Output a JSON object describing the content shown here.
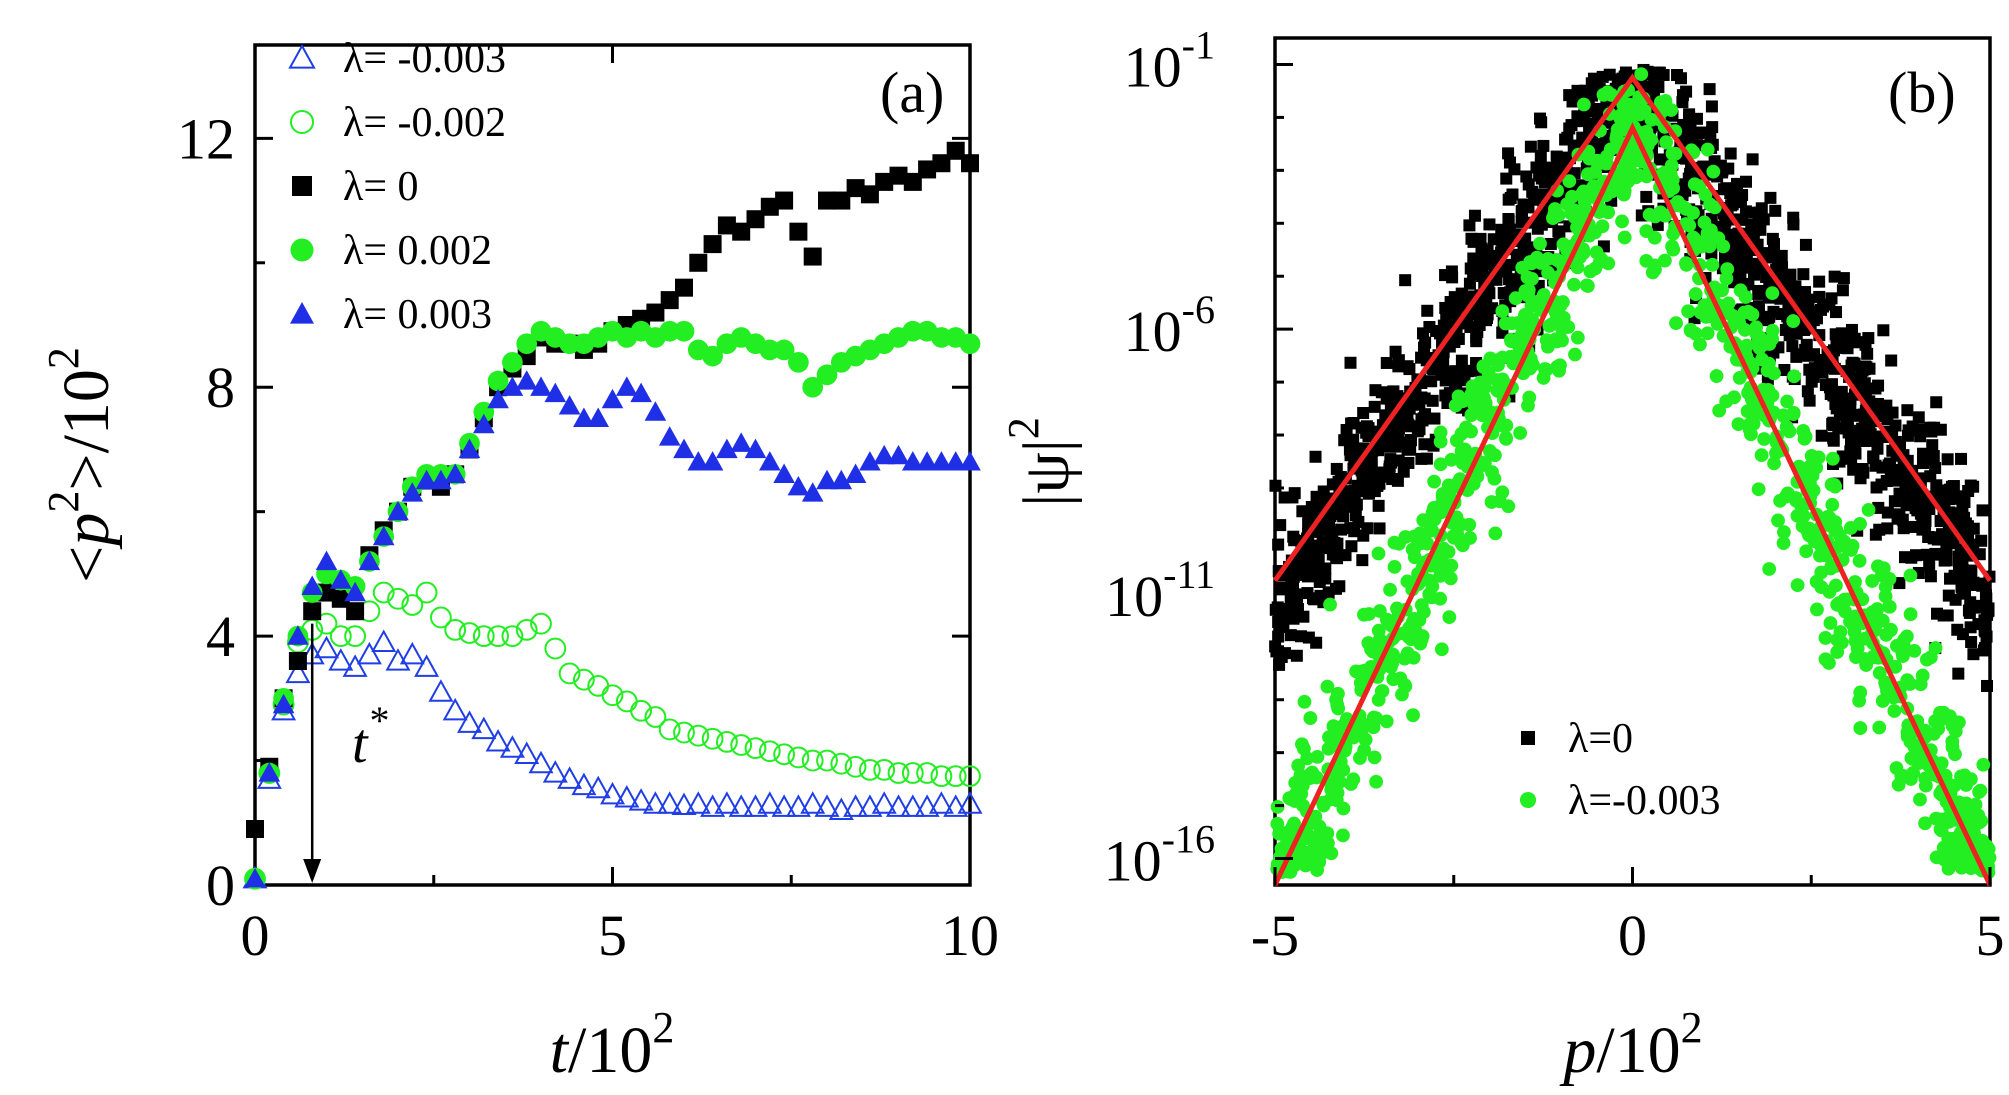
{
  "chart_data": [
    {
      "panel": "(a)",
      "type": "scatter",
      "xlabel": "t/10^2",
      "ylabel": "<p^2>/10^2",
      "xlim": [
        0,
        10
      ],
      "ylim": [
        0,
        13.5
      ],
      "x_ticks": [
        0,
        5,
        10
      ],
      "y_ticks": [
        0,
        4,
        8,
        12
      ],
      "x_tick_labels": [
        "0",
        "5",
        "10"
      ],
      "y_tick_labels": [
        "0",
        "4",
        "8",
        "12"
      ],
      "legend_position": "top-left",
      "annotation": {
        "text": "t",
        "superscript": "*",
        "arrow_x": 0.8,
        "arrow_from_y": 4.2,
        "arrow_to_y": 0
      },
      "series": [
        {
          "name": "λ= -0.003",
          "marker": "triangle-open",
          "color": "#1f3ee6",
          "x": [
            0.0,
            0.2,
            0.4,
            0.6,
            0.8,
            1.0,
            1.2,
            1.4,
            1.6,
            1.8,
            2.0,
            2.2,
            2.4,
            2.6,
            2.8,
            3.0,
            3.2,
            3.4,
            3.6,
            3.8,
            4.0,
            4.2,
            4.4,
            4.6,
            4.8,
            5.0,
            5.2,
            5.4,
            5.6,
            5.8,
            6.0,
            6.2,
            6.4,
            6.6,
            6.8,
            7.0,
            7.2,
            7.4,
            7.6,
            7.8,
            8.0,
            8.2,
            8.4,
            8.6,
            8.8,
            9.0,
            9.2,
            9.4,
            9.6,
            9.8,
            10.0
          ],
          "y": [
            0.1,
            1.7,
            2.8,
            3.4,
            3.7,
            3.8,
            3.6,
            3.5,
            3.7,
            3.9,
            3.6,
            3.7,
            3.5,
            3.1,
            2.8,
            2.6,
            2.5,
            2.3,
            2.2,
            2.1,
            1.95,
            1.8,
            1.7,
            1.6,
            1.55,
            1.45,
            1.4,
            1.35,
            1.3,
            1.3,
            1.28,
            1.3,
            1.25,
            1.3,
            1.25,
            1.25,
            1.3,
            1.25,
            1.25,
            1.3,
            1.25,
            1.2,
            1.25,
            1.25,
            1.3,
            1.25,
            1.25,
            1.25,
            1.3,
            1.25,
            1.3
          ]
        },
        {
          "name": "λ= -0.002",
          "marker": "circle-open",
          "color": "#22ee22",
          "x": [
            0.0,
            0.2,
            0.4,
            0.6,
            0.8,
            1.0,
            1.2,
            1.4,
            1.6,
            1.8,
            2.0,
            2.2,
            2.4,
            2.6,
            2.8,
            3.0,
            3.2,
            3.4,
            3.6,
            3.8,
            4.0,
            4.2,
            4.4,
            4.6,
            4.8,
            5.0,
            5.2,
            5.4,
            5.6,
            5.8,
            6.0,
            6.2,
            6.4,
            6.6,
            6.8,
            7.0,
            7.2,
            7.4,
            7.6,
            7.8,
            8.0,
            8.2,
            8.4,
            8.6,
            8.8,
            9.0,
            9.2,
            9.4,
            9.6,
            9.8,
            10.0
          ],
          "y": [
            0.1,
            1.8,
            2.9,
            3.9,
            4.1,
            4.2,
            4.0,
            4.0,
            4.4,
            4.7,
            4.6,
            4.5,
            4.7,
            4.3,
            4.1,
            4.05,
            4.0,
            4.0,
            4.0,
            4.1,
            4.2,
            3.8,
            3.4,
            3.3,
            3.2,
            3.05,
            2.95,
            2.8,
            2.7,
            2.5,
            2.45,
            2.4,
            2.35,
            2.3,
            2.25,
            2.2,
            2.15,
            2.1,
            2.05,
            2.0,
            2.0,
            1.95,
            1.9,
            1.85,
            1.85,
            1.8,
            1.8,
            1.8,
            1.75,
            1.75,
            1.75
          ]
        },
        {
          "name": "λ= 0",
          "marker": "square-filled",
          "color": "#000000",
          "x": [
            0.0,
            0.2,
            0.4,
            0.6,
            0.8,
            1.0,
            1.2,
            1.4,
            1.6,
            1.8,
            2.0,
            2.2,
            2.4,
            2.6,
            2.8,
            3.0,
            3.2,
            3.4,
            3.6,
            3.8,
            4.0,
            4.2,
            4.4,
            4.6,
            4.8,
            5.0,
            5.2,
            5.4,
            5.6,
            5.8,
            6.0,
            6.2,
            6.4,
            6.6,
            6.8,
            7.0,
            7.2,
            7.4,
            7.6,
            7.8,
            8.0,
            8.2,
            8.4,
            8.6,
            8.8,
            9.0,
            9.2,
            9.4,
            9.6,
            9.8,
            10.0
          ],
          "y": [
            0.9,
            1.9,
            3.0,
            3.6,
            4.4,
            4.7,
            4.6,
            4.4,
            5.3,
            5.7,
            6.0,
            6.4,
            6.5,
            6.4,
            6.6,
            7.0,
            7.5,
            8.0,
            8.3,
            8.5,
            8.8,
            8.7,
            8.7,
            8.6,
            8.7,
            8.9,
            9.0,
            9.1,
            9.2,
            9.4,
            9.6,
            10.0,
            10.3,
            10.6,
            10.5,
            10.7,
            10.9,
            11.0,
            10.5,
            10.1,
            11.0,
            11.0,
            11.2,
            11.1,
            11.3,
            11.4,
            11.3,
            11.5,
            11.6,
            11.8,
            11.6
          ]
        },
        {
          "name": "λ= 0.002",
          "marker": "circle-filled",
          "color": "#22ee22",
          "x": [
            0.0,
            0.2,
            0.4,
            0.6,
            0.8,
            1.0,
            1.2,
            1.4,
            1.6,
            1.8,
            2.0,
            2.2,
            2.4,
            2.6,
            2.8,
            3.0,
            3.2,
            3.4,
            3.6,
            3.8,
            4.0,
            4.2,
            4.4,
            4.6,
            4.8,
            5.0,
            5.2,
            5.4,
            5.6,
            5.8,
            6.0,
            6.2,
            6.4,
            6.6,
            6.8,
            7.0,
            7.2,
            7.4,
            7.6,
            7.8,
            8.0,
            8.2,
            8.4,
            8.6,
            8.8,
            9.0,
            9.2,
            9.4,
            9.6,
            9.8,
            10.0
          ],
          "y": [
            0.1,
            1.8,
            3.0,
            4.0,
            4.7,
            5.0,
            4.9,
            4.8,
            5.2,
            5.6,
            6.0,
            6.4,
            6.6,
            6.6,
            6.6,
            7.1,
            7.6,
            8.1,
            8.4,
            8.7,
            8.9,
            8.8,
            8.7,
            8.7,
            8.8,
            8.9,
            8.8,
            8.9,
            8.8,
            8.9,
            8.9,
            8.6,
            8.5,
            8.7,
            8.8,
            8.7,
            8.6,
            8.6,
            8.4,
            8.0,
            8.2,
            8.4,
            8.5,
            8.6,
            8.7,
            8.8,
            8.9,
            8.9,
            8.8,
            8.8,
            8.7
          ]
        },
        {
          "name": "λ= 0.003",
          "marker": "triangle-filled",
          "color": "#1f2fe6",
          "x": [
            0.0,
            0.2,
            0.4,
            0.6,
            0.8,
            1.0,
            1.2,
            1.4,
            1.6,
            1.8,
            2.0,
            2.2,
            2.4,
            2.6,
            2.8,
            3.0,
            3.2,
            3.4,
            3.6,
            3.8,
            4.0,
            4.2,
            4.4,
            4.6,
            4.8,
            5.0,
            5.2,
            5.4,
            5.6,
            5.8,
            6.0,
            6.2,
            6.4,
            6.6,
            6.8,
            7.0,
            7.2,
            7.4,
            7.6,
            7.8,
            8.0,
            8.2,
            8.4,
            8.6,
            8.8,
            9.0,
            9.2,
            9.4,
            9.6,
            9.8,
            10.0
          ],
          "y": [
            0.1,
            1.8,
            2.9,
            4.0,
            4.8,
            5.2,
            4.9,
            4.7,
            5.2,
            5.6,
            6.0,
            6.3,
            6.5,
            6.5,
            6.6,
            7.0,
            7.4,
            7.8,
            8.0,
            8.1,
            8.0,
            7.9,
            7.7,
            7.5,
            7.5,
            7.8,
            8.0,
            7.9,
            7.6,
            7.2,
            7.0,
            6.8,
            6.8,
            7.0,
            7.1,
            7.0,
            6.8,
            6.6,
            6.4,
            6.3,
            6.5,
            6.5,
            6.6,
            6.8,
            6.9,
            6.9,
            6.8,
            6.8,
            6.8,
            6.8,
            6.8
          ]
        }
      ]
    },
    {
      "panel": "(b)",
      "type": "scatter",
      "xlabel": "p/10^2",
      "ylabel": "|ψ|^2",
      "yscale": "log",
      "xlim": [
        -5,
        5
      ],
      "ylim_log10": [
        -16.5,
        -0.5
      ],
      "x_ticks": [
        -5,
        0,
        5
      ],
      "x_tick_labels": [
        "-5",
        "0",
        "5"
      ],
      "y_ticks_log10": [
        -16,
        -11,
        -6,
        -1
      ],
      "y_tick_labels": [
        {
          "base": "10",
          "exp": "-16"
        },
        {
          "base": "10",
          "exp": "-11"
        },
        {
          "base": "10",
          "exp": "-6"
        },
        {
          "base": "10",
          "exp": "-1"
        }
      ],
      "legend_position": "bottom-center",
      "series": [
        {
          "name": "λ=0",
          "marker": "square-filled",
          "color": "#000000",
          "model": {
            "log10_peak": -1.4,
            "slope_per_unit": 1.95,
            "noise_log10": 0.8,
            "count": 1400
          }
        },
        {
          "name": "λ=-0.003",
          "marker": "circle-filled",
          "color": "#22ee22",
          "model": {
            "log10_peak": -2.0,
            "slope_per_unit": 2.9,
            "noise_log10": 0.9,
            "count": 1100
          }
        }
      ],
      "fit_lines": [
        {
          "name": "fit λ=0",
          "color": "#ee2222",
          "points": [
            [
              -5,
              -10.75
            ],
            [
              0,
              -1.25
            ],
            [
              5,
              -10.75
            ]
          ]
        },
        {
          "name": "fit λ=-0.003",
          "color": "#ee2222",
          "points": [
            [
              -5,
              -16.6
            ],
            [
              0,
              -2.2
            ],
            [
              5,
              -16.6
            ]
          ]
        }
      ]
    }
  ]
}
